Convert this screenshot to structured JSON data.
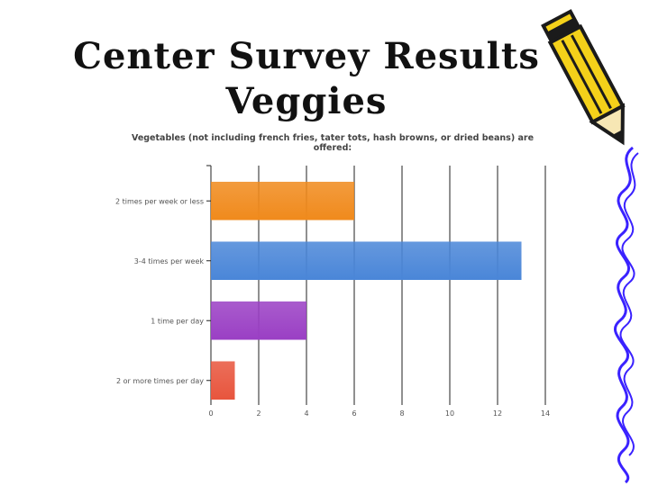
{
  "slide": {
    "title_line1": "Center Survey Results",
    "title_line2": "Veggies"
  },
  "colors": {
    "grid": "#222222",
    "text": "#555555",
    "pencil_yellow": "#f4d11a",
    "pencil_dark": "#1b1b1b",
    "blue_squiggle": "#3a22ff"
  },
  "chart_data": {
    "type": "bar",
    "orientation": "horizontal",
    "title": "Vegetables (not including french fries, tater tots, hash browns, or dried beans) are offered:",
    "categories": [
      "2 times per week or less",
      "3-4 times per week",
      "1 time per day",
      "2 or more times per day"
    ],
    "values": [
      6,
      13,
      4,
      1
    ],
    "bar_colors": [
      "#f08a1c",
      "#4a86d8",
      "#9a3fc4",
      "#e8553d"
    ],
    "xlim": [
      0,
      14
    ],
    "xticks": [
      0,
      2,
      4,
      6,
      8,
      10,
      12,
      14
    ],
    "grid": true,
    "xlabel": "",
    "ylabel": ""
  },
  "decorations": {
    "pencil_icon": "pencil-icon",
    "squiggle": "blue-squiggle-line"
  }
}
